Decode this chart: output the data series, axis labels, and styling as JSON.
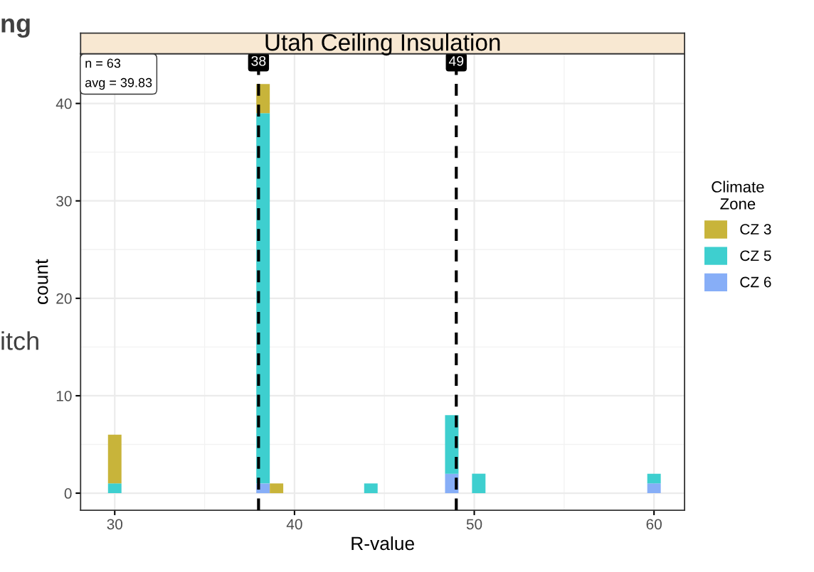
{
  "chart_data": {
    "type": "bar",
    "stacked": true,
    "title": "Utah Ceiling Insulation",
    "xlabel": "R-value",
    "ylabel": "count",
    "legend_title": "Climate\nZone",
    "x": [
      30,
      38.25,
      39,
      44.25,
      48.75,
      50.25,
      60
    ],
    "series": [
      {
        "name": "CZ 6",
        "color": "#87aef7",
        "values": [
          0,
          1,
          0,
          0,
          2,
          0,
          1
        ]
      },
      {
        "name": "CZ 5",
        "color": "#3ecfcf",
        "values": [
          1,
          38,
          0,
          1,
          6,
          2,
          1
        ]
      },
      {
        "name": "CZ 3",
        "color": "#c8b43a",
        "values": [
          5,
          3,
          1,
          0,
          0,
          0,
          0
        ]
      }
    ],
    "xlim": [
      28.1,
      61.7
    ],
    "ylim": [
      -1.75,
      45.1
    ],
    "xticks": [
      30,
      40,
      50,
      60
    ],
    "yticks": [
      0,
      10,
      20,
      30,
      40
    ],
    "ref_lines": [
      {
        "axis": "x",
        "value": 38,
        "label": "38",
        "color": "#000000",
        "line_style": "dashed"
      },
      {
        "axis": "x",
        "value": 49,
        "label": "49",
        "color": "#000000",
        "line_style": "dashed"
      }
    ],
    "annotations": [
      "n = 63\navg = 39.83",
      "ng",
      "itch"
    ],
    "grid": true,
    "legend": "right"
  }
}
